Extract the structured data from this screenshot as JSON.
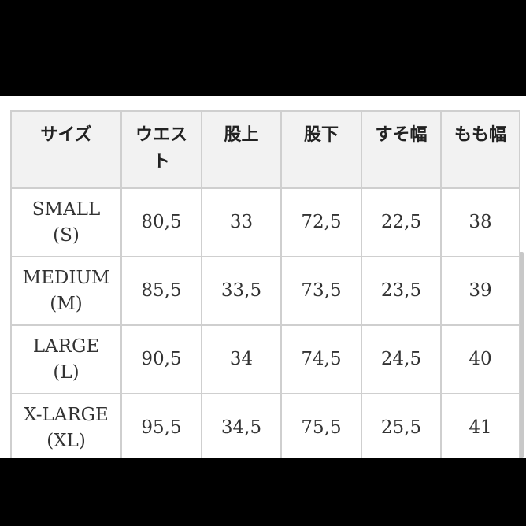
{
  "table": {
    "headers": [
      "サイズ",
      "ウエスト",
      "股上",
      "股下",
      "すそ幅",
      "もも幅"
    ],
    "rows": [
      {
        "size": "SMALL",
        "code": "(S)",
        "values": [
          "80,5",
          "33",
          "72,5",
          "22,5",
          "38"
        ]
      },
      {
        "size": "MEDIUM",
        "code": "(M)",
        "values": [
          "85,5",
          "33,5",
          "73,5",
          "23,5",
          "39"
        ]
      },
      {
        "size": "LARGE",
        "code": "(L)",
        "values": [
          "90,5",
          "34",
          "74,5",
          "24,5",
          "40"
        ]
      },
      {
        "size": "X-LARGE",
        "code": "(XL)",
        "values": [
          "95,5",
          "34,5",
          "75,5",
          "25,5",
          "41"
        ]
      }
    ]
  }
}
